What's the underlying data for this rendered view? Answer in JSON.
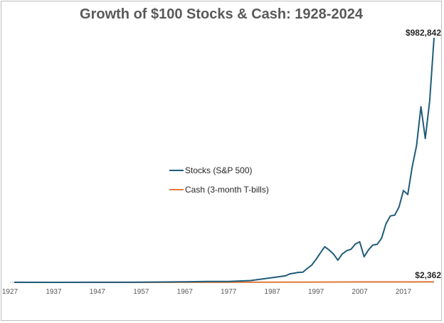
{
  "chart_data": {
    "type": "line",
    "title": "Growth of $100 Stocks & Cash: 1928-2024",
    "xlabel": "",
    "ylabel": "",
    "xlim": [
      1927,
      2024
    ],
    "ylim": [
      0,
      1000000
    ],
    "x_ticks": [
      1927,
      1937,
      1947,
      1957,
      1967,
      1977,
      1987,
      1997,
      2007,
      2017
    ],
    "grid": false,
    "legend_position": "center",
    "series": [
      {
        "name": "Stocks (S&P 500)",
        "color": "#1f5c7a",
        "end_label": "$982,842",
        "points": [
          [
            1928,
            144
          ],
          [
            1937,
            120
          ],
          [
            1947,
            200
          ],
          [
            1953,
            400
          ],
          [
            1957,
            900
          ],
          [
            1962,
            1400
          ],
          [
            1967,
            2400
          ],
          [
            1972,
            3700
          ],
          [
            1977,
            3800
          ],
          [
            1982,
            7200
          ],
          [
            1987,
            19000
          ],
          [
            1990,
            26000
          ],
          [
            1991,
            34000
          ],
          [
            1992,
            37000
          ],
          [
            1993,
            40000
          ],
          [
            1994,
            41000
          ],
          [
            1995,
            56000
          ],
          [
            1996,
            69000
          ],
          [
            1997,
            92000
          ],
          [
            1998,
            118000
          ],
          [
            1999,
            143000
          ],
          [
            2000,
            130000
          ],
          [
            2001,
            114000
          ],
          [
            2002,
            89000
          ],
          [
            2003,
            114000
          ],
          [
            2004,
            127000
          ],
          [
            2005,
            133000
          ],
          [
            2006,
            154000
          ],
          [
            2007,
            163000
          ],
          [
            2008,
            103000
          ],
          [
            2009,
            130000
          ],
          [
            2010,
            150000
          ],
          [
            2011,
            153000
          ],
          [
            2012,
            177000
          ],
          [
            2013,
            235000
          ],
          [
            2014,
            267000
          ],
          [
            2015,
            270000
          ],
          [
            2016,
            303000
          ],
          [
            2017,
            369000
          ],
          [
            2018,
            353000
          ],
          [
            2019,
            464000
          ],
          [
            2020,
            549000
          ],
          [
            2021,
            706000
          ],
          [
            2022,
            578000
          ],
          [
            2023,
            730000
          ],
          [
            2024,
            982842
          ]
        ]
      },
      {
        "name": "Cash (3-month T-bills)",
        "color": "#e07b39",
        "end_label": "$2,362",
        "points": [
          [
            1928,
            103
          ],
          [
            1937,
            110
          ],
          [
            1947,
            114
          ],
          [
            1957,
            138
          ],
          [
            1967,
            210
          ],
          [
            1977,
            360
          ],
          [
            1987,
            800
          ],
          [
            1997,
            1200
          ],
          [
            2007,
            1600
          ],
          [
            2017,
            1750
          ],
          [
            2024,
            2362
          ]
        ]
      }
    ]
  }
}
